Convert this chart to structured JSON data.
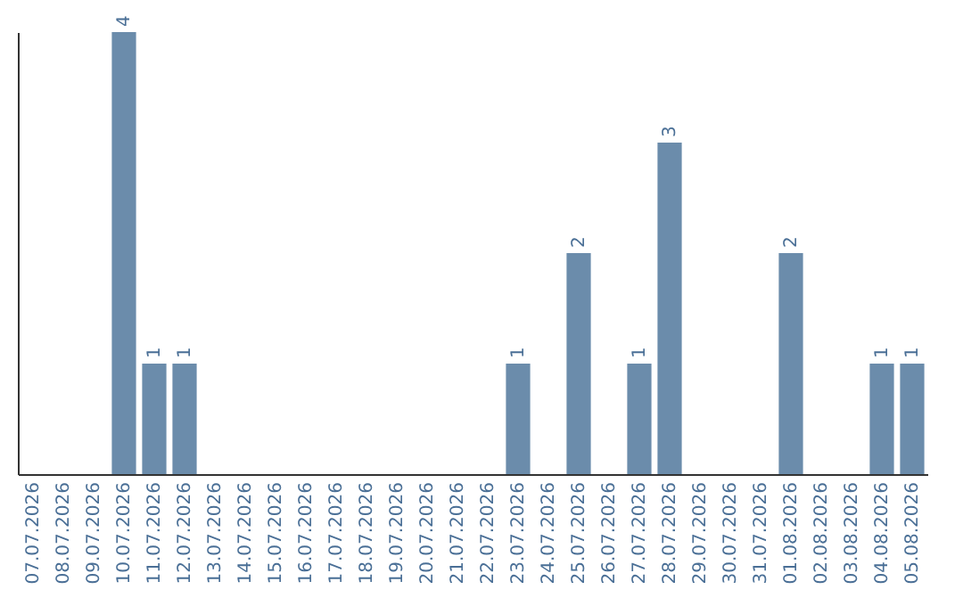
{
  "chart_data": {
    "type": "bar",
    "categories": [
      "07.07.2026",
      "08.07.2026",
      "09.07.2026",
      "10.07.2026",
      "11.07.2026",
      "12.07.2026",
      "13.07.2026",
      "14.07.2026",
      "15.07.2026",
      "16.07.2026",
      "17.07.2026",
      "18.07.2026",
      "19.07.2026",
      "20.07.2026",
      "21.07.2026",
      "22.07.2026",
      "23.07.2026",
      "24.07.2026",
      "25.07.2026",
      "26.07.2026",
      "27.07.2026",
      "28.07.2026",
      "29.07.2026",
      "30.07.2026",
      "31.07.2026",
      "01.08.2026",
      "02.08.2026",
      "03.08.2026",
      "04.08.2026",
      "05.08.2026"
    ],
    "values": [
      0,
      0,
      0,
      4,
      1,
      1,
      0,
      0,
      0,
      0,
      0,
      0,
      0,
      0,
      0,
      0,
      1,
      0,
      2,
      0,
      1,
      3,
      0,
      0,
      0,
      2,
      0,
      0,
      1,
      1
    ],
    "value_labels": [
      null,
      null,
      null,
      "4",
      "1",
      "1",
      null,
      null,
      null,
      null,
      null,
      null,
      null,
      null,
      null,
      null,
      "1",
      null,
      "2",
      null,
      "1",
      "3",
      null,
      null,
      null,
      "2",
      null,
      null,
      "1",
      "1"
    ],
    "color": "#6b8cab",
    "ylim": [
      0,
      4
    ],
    "tick_labels": "x",
    "grid": false
  }
}
